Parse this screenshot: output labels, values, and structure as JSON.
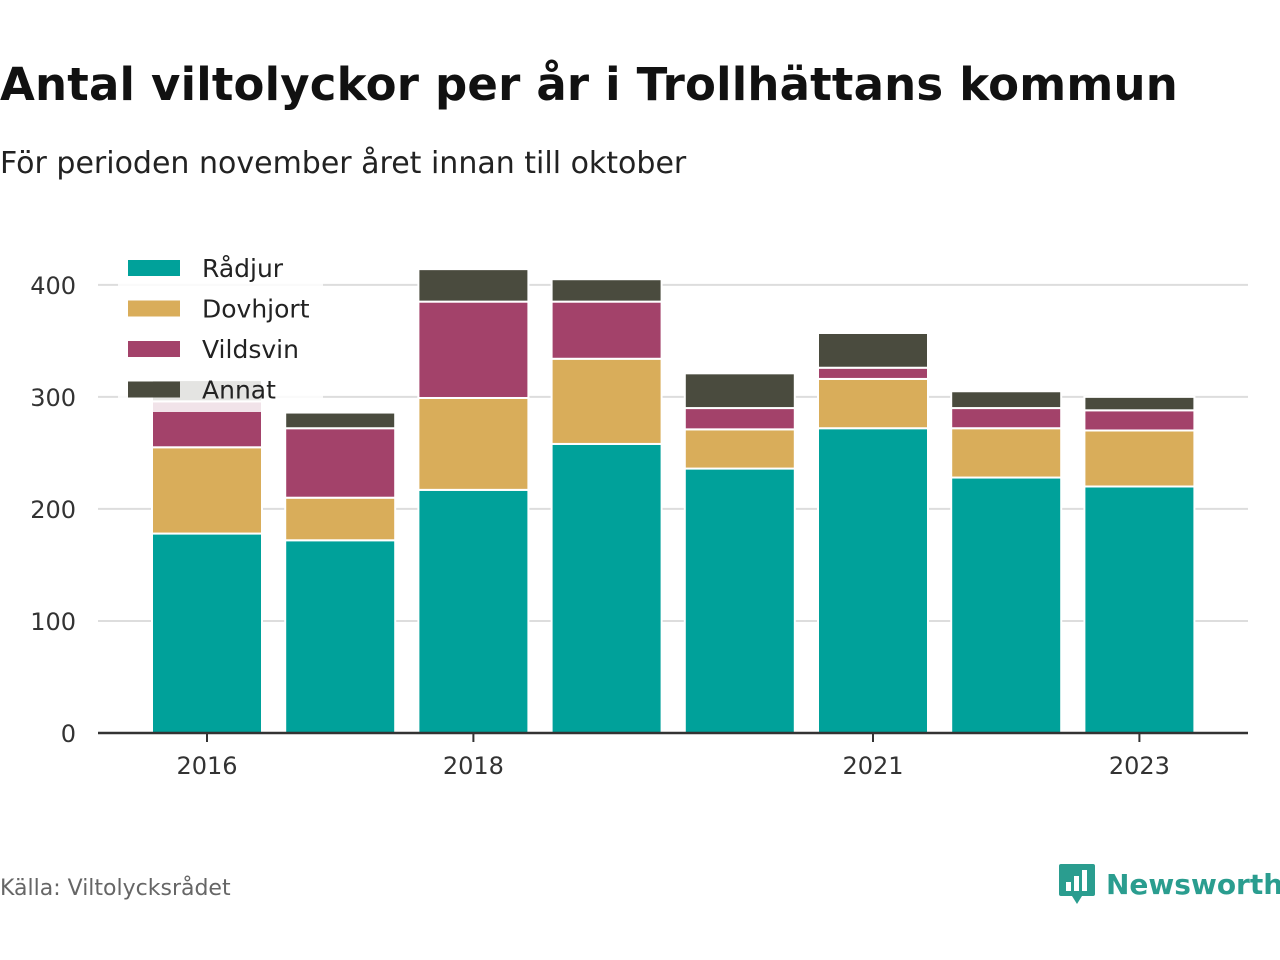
{
  "header": {
    "title": "Antal viltolyckor per år i Trollhättans kommun",
    "subtitle": "För perioden november året innan till oktober"
  },
  "footer": {
    "source": "Källa: Viltolycksrådet",
    "brand": "Newsworthy",
    "brand_icon": "bar-chart-logo-icon",
    "brand_color": "#2a9d8f"
  },
  "chart_data": {
    "type": "bar",
    "stacked": true,
    "categories": [
      "2016",
      "2017",
      "2018",
      "2019",
      "2020",
      "2021",
      "2022",
      "2023"
    ],
    "x_tick_labels": [
      "2016",
      "",
      "2018",
      "",
      "",
      "2021",
      "",
      "2023"
    ],
    "series": [
      {
        "name": "Rådjur",
        "color": "#00a19a",
        "values": [
          178,
          172,
          217,
          258,
          236,
          272,
          228,
          220
        ]
      },
      {
        "name": "Dovhjort",
        "color": "#d9ad5a",
        "values": [
          77,
          38,
          82,
          76,
          35,
          44,
          44,
          50
        ]
      },
      {
        "name": "Vildsvin",
        "color": "#a3426a",
        "values": [
          41,
          62,
          86,
          51,
          19,
          10,
          18,
          18
        ]
      },
      {
        "name": "Annat",
        "color": "#4a4b3e",
        "values": [
          19,
          14,
          29,
          20,
          31,
          31,
          15,
          12
        ]
      }
    ],
    "ylim": [
      0,
      440
    ],
    "yticks": [
      0,
      100,
      200,
      300,
      400
    ],
    "grid": true,
    "legend_position": "top-left",
    "xlabel": "",
    "ylabel": ""
  }
}
